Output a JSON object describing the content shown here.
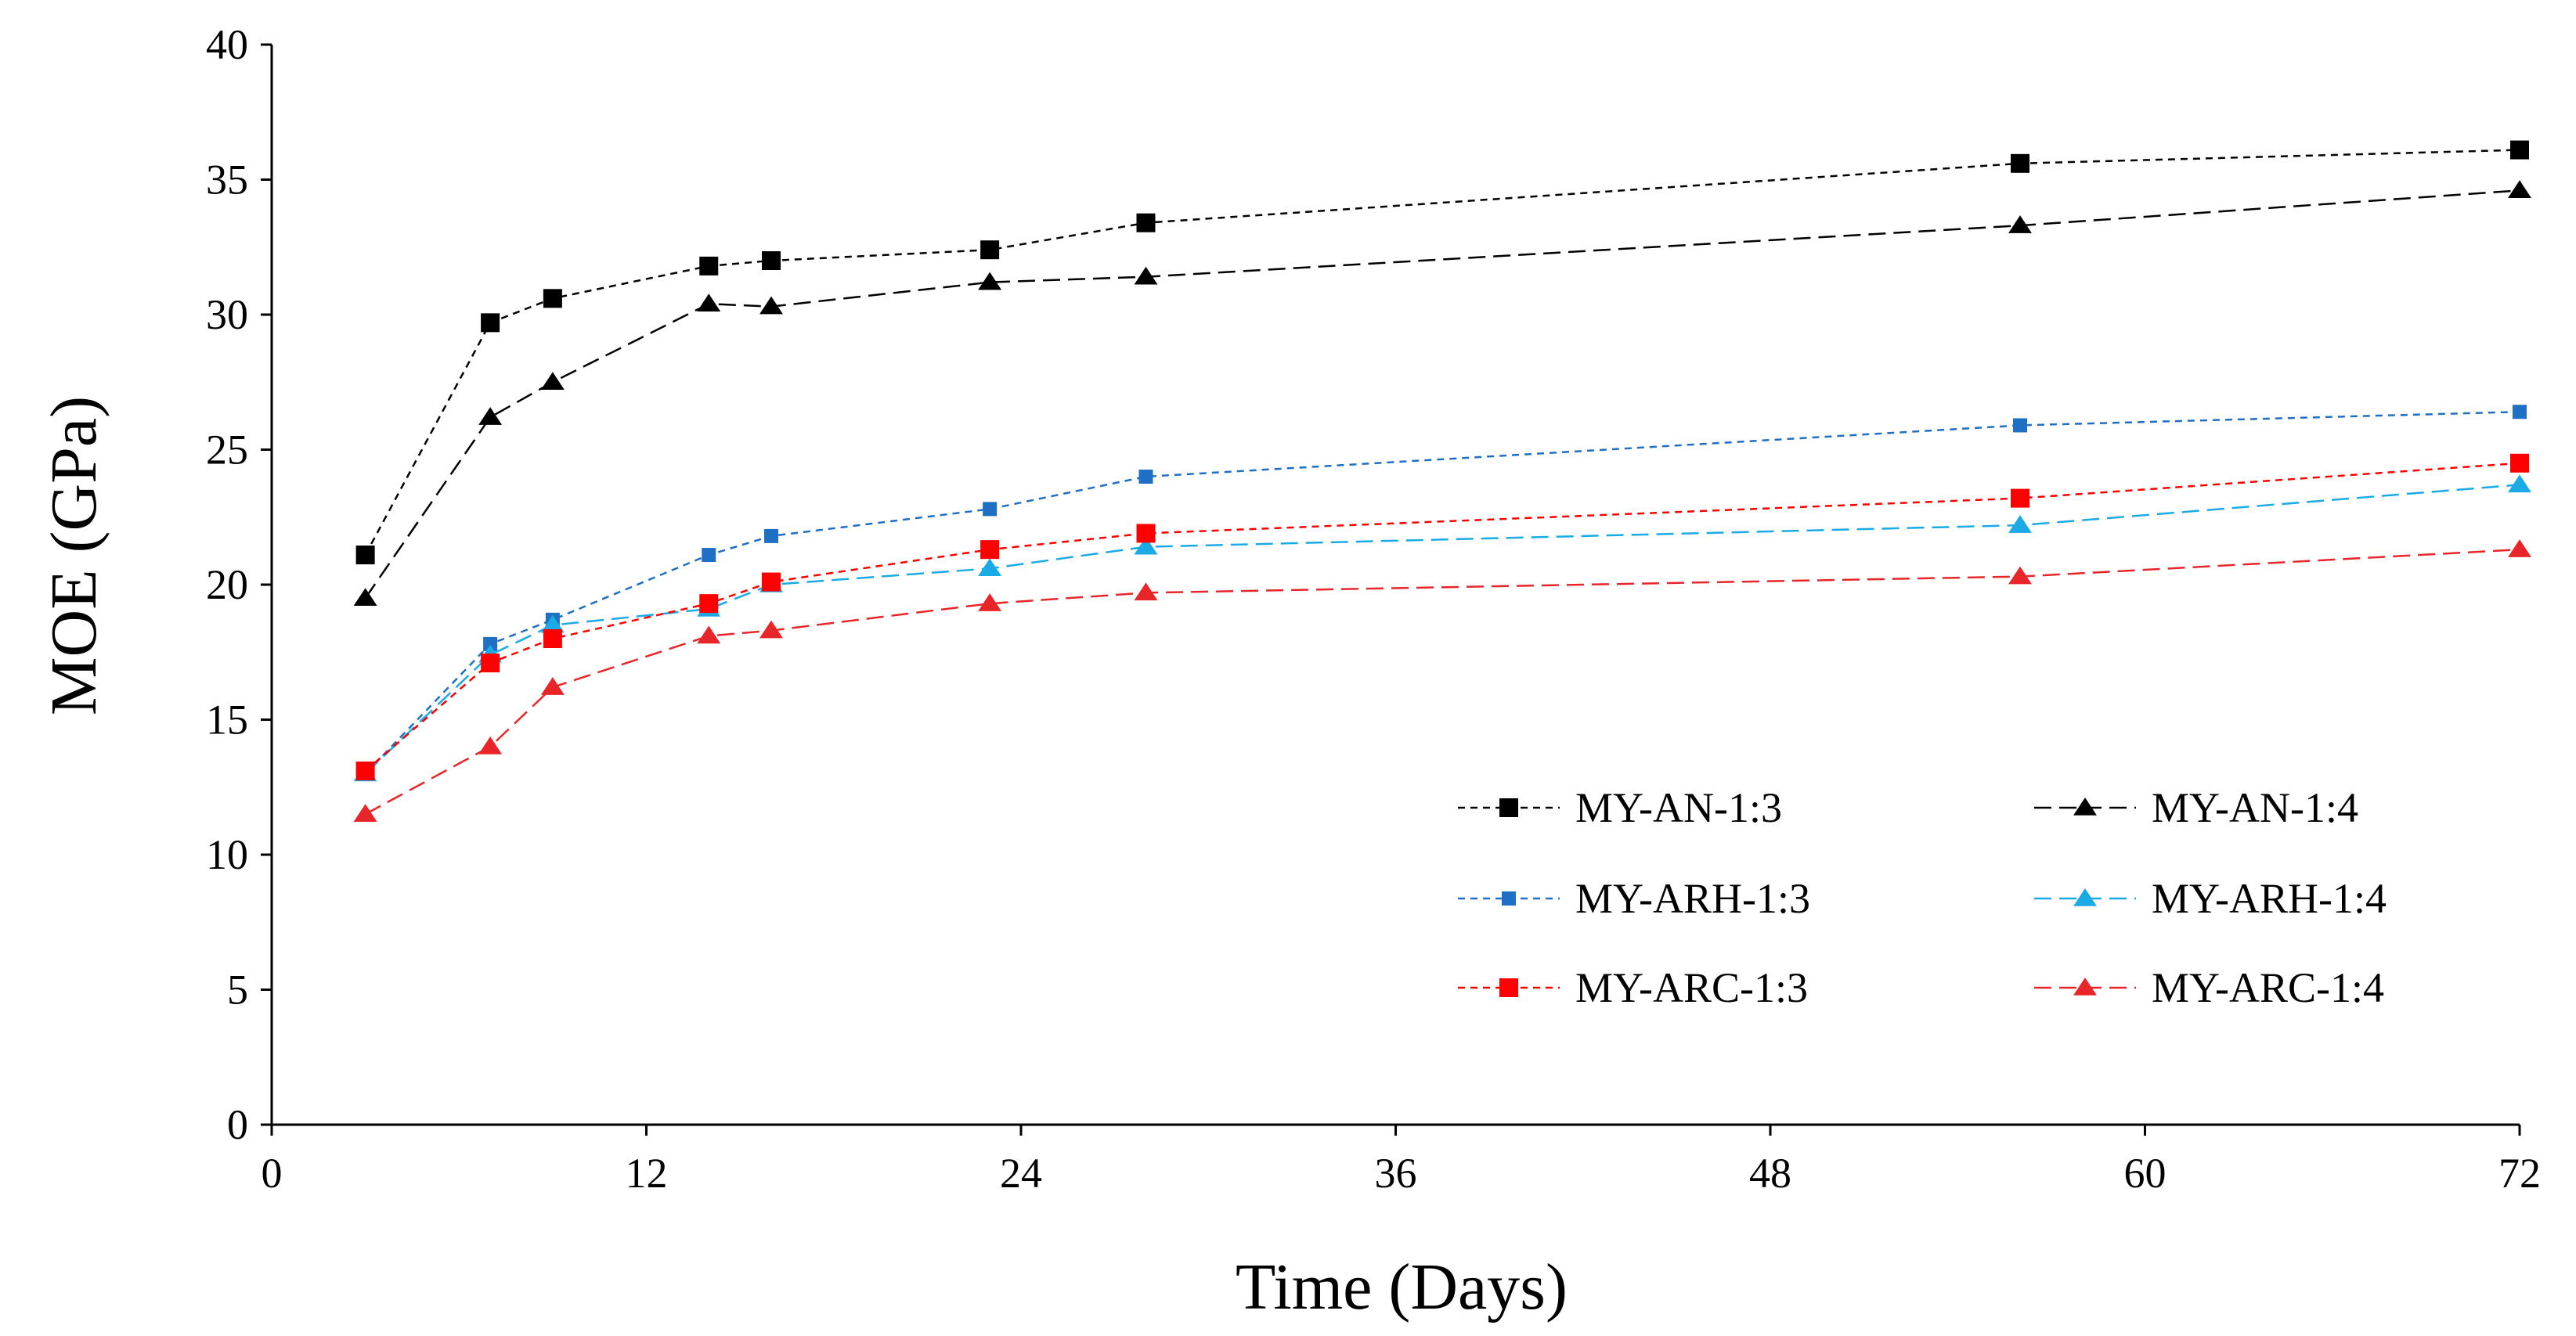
{
  "chart_data": {
    "type": "line",
    "title": "",
    "xlabel": "Time (Days)",
    "ylabel": "MOE (GPa)",
    "xlim": [
      0,
      72
    ],
    "ylim": [
      0,
      40
    ],
    "xticks": [
      0,
      12,
      24,
      36,
      48,
      60,
      72
    ],
    "yticks": [
      0,
      5,
      10,
      15,
      20,
      25,
      30,
      35,
      40
    ],
    "grid": false,
    "legend_position": "bottom-right",
    "x": [
      3,
      7,
      9,
      14,
      16,
      23,
      28,
      56,
      72
    ],
    "series": [
      {
        "name": "MY-AN-1:3",
        "color": "#000000",
        "marker": "square",
        "marker_size": "large",
        "dash": "dotted",
        "values": [
          21.1,
          29.7,
          30.6,
          31.8,
          32.0,
          32.4,
          33.4,
          35.6,
          36.1
        ]
      },
      {
        "name": "MY-AN-1:4",
        "color": "#000000",
        "marker": "triangle",
        "marker_size": "large",
        "dash": "dashed",
        "values": [
          19.5,
          26.2,
          27.5,
          30.4,
          30.3,
          31.2,
          31.4,
          33.3,
          34.6
        ]
      },
      {
        "name": "MY-ARH-1:3",
        "color": "#1F6FC4",
        "marker": "square",
        "marker_size": "small",
        "dash": "dotted",
        "values": [
          13.0,
          17.8,
          18.7,
          21.1,
          21.8,
          22.8,
          24.0,
          25.9,
          26.4
        ]
      },
      {
        "name": "MY-ARH-1:4",
        "color": "#1AAAE6",
        "marker": "triangle",
        "marker_size": "large",
        "dash": "dashed",
        "values": [
          13.0,
          17.4,
          18.5,
          19.1,
          20.0,
          20.6,
          21.4,
          22.2,
          23.7
        ]
      },
      {
        "name": "MY-ARC-1:3",
        "color": "#FF0000",
        "marker": "square",
        "marker_size": "large",
        "dash": "dotted",
        "values": [
          13.1,
          17.1,
          18.0,
          19.3,
          20.1,
          21.3,
          21.9,
          23.2,
          24.5
        ]
      },
      {
        "name": "MY-ARC-1:4",
        "color": "#E8262A",
        "marker": "triangle",
        "marker_size": "large",
        "dash": "dashed",
        "values": [
          11.5,
          14.0,
          16.2,
          18.1,
          18.3,
          19.3,
          19.7,
          20.3,
          21.3
        ]
      }
    ]
  }
}
